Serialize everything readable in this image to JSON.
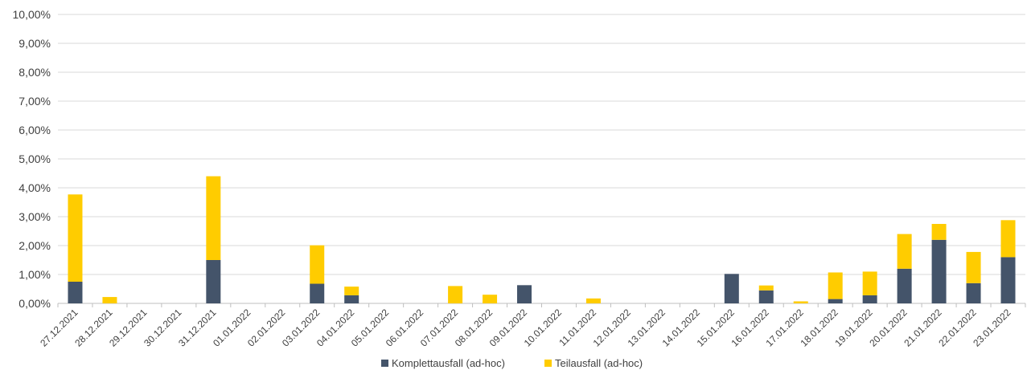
{
  "chart_data": {
    "type": "bar",
    "stacked": true,
    "categories": [
      "27.12.2021",
      "28.12.2021",
      "29.12.2021",
      "30.12.2021",
      "31.12.2021",
      "01.01.2022",
      "02.01.2022",
      "03.01.2022",
      "04.01.2022",
      "05.01.2022",
      "06.01.2022",
      "07.01.2022",
      "08.01.2022",
      "09.01.2022",
      "10.01.2022",
      "11.01.2022",
      "12.01.2022",
      "13.01.2022",
      "14.01.2022",
      "15.01.2022",
      "16.01.2022",
      "17.01.2022",
      "18.01.2022",
      "19.01.2022",
      "20.01.2022",
      "21.01.2022",
      "22.01.2022",
      "23.01.2022"
    ],
    "series": [
      {
        "name": "Komplettausfall (ad-hoc)",
        "color": "#44546a",
        "values": [
          0.75,
          0,
          0,
          0,
          1.5,
          0,
          0,
          0.68,
          0.28,
          0,
          0,
          0,
          0,
          0.63,
          0,
          0,
          0,
          0,
          0,
          1.02,
          0.45,
          0,
          0.15,
          0.28,
          1.2,
          2.2,
          0.7,
          1.6
        ]
      },
      {
        "name": "Teilausfall (ad-hoc)",
        "color": "#ffcc00",
        "values": [
          3.02,
          0.22,
          0,
          0,
          2.9,
          0,
          0,
          1.33,
          0.3,
          0,
          0,
          0.6,
          0.3,
          0,
          0,
          0.17,
          0,
          0,
          0,
          0,
          0.17,
          0.07,
          0.92,
          0.82,
          1.2,
          0.55,
          1.08,
          1.28
        ]
      }
    ],
    "ylim": [
      0,
      10
    ],
    "yticks": [
      "0,00%",
      "1,00%",
      "2,00%",
      "3,00%",
      "4,00%",
      "5,00%",
      "6,00%",
      "7,00%",
      "8,00%",
      "9,00%",
      "10,00%"
    ],
    "grid": true,
    "legend": "bottom",
    "title": "",
    "xlabel": "",
    "ylabel": ""
  }
}
